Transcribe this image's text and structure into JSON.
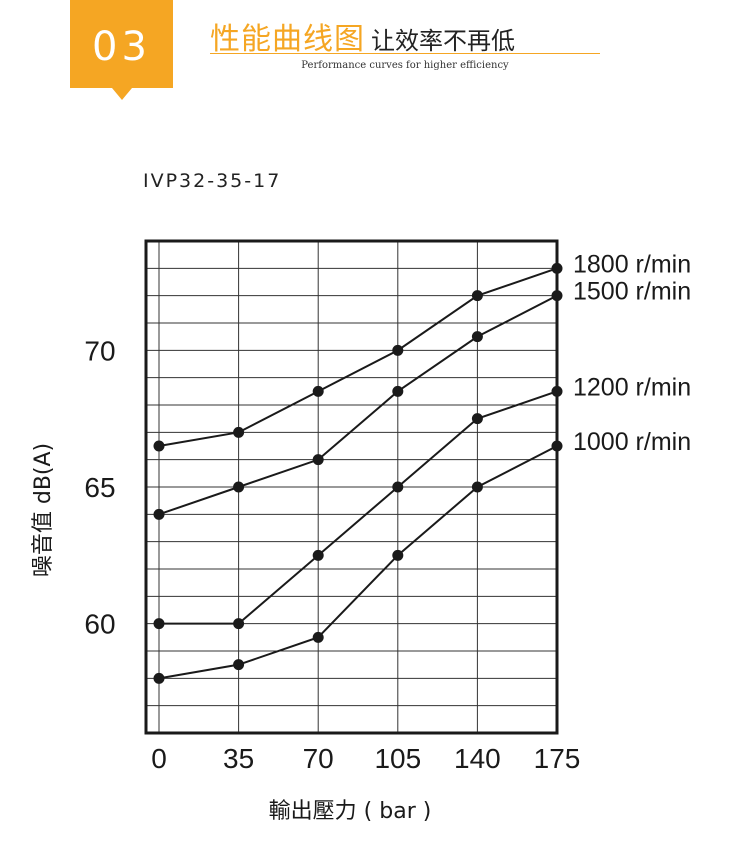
{
  "header": {
    "badge_number": "03",
    "title": "性能曲线图",
    "subtitle": "让效率不再低",
    "title_en": "Performance curves for higher efficiency"
  },
  "model": "IVP32-35-17",
  "colors": {
    "accent": "#f5a623",
    "ink": "#1a1a1a"
  },
  "chart_data": {
    "type": "line",
    "title": "IVP32-35-17",
    "xlabel": "輸出壓力 ( bar )",
    "ylabel": "噪音值 dB(A)",
    "x": [
      0,
      35,
      70,
      105,
      140,
      175
    ],
    "x_tick_labels": [
      "0",
      "35",
      "70",
      "105",
      "140",
      "175"
    ],
    "y_tick_labels": [
      "60",
      "65",
      "70"
    ],
    "ylim": [
      56,
      74
    ],
    "grid": true,
    "series": [
      {
        "name": "1800 r/min",
        "values": [
          66.5,
          67.0,
          68.5,
          70.0,
          72.0,
          73.0
        ]
      },
      {
        "name": "1500 r/min",
        "values": [
          64.0,
          65.0,
          66.0,
          68.5,
          70.5,
          72.0
        ]
      },
      {
        "name": "1200 r/min",
        "values": [
          60.0,
          60.0,
          62.5,
          65.0,
          67.5,
          68.5
        ]
      },
      {
        "name": "1000 r/min",
        "values": [
          58.0,
          58.5,
          59.5,
          62.5,
          65.0,
          66.5
        ]
      }
    ]
  }
}
